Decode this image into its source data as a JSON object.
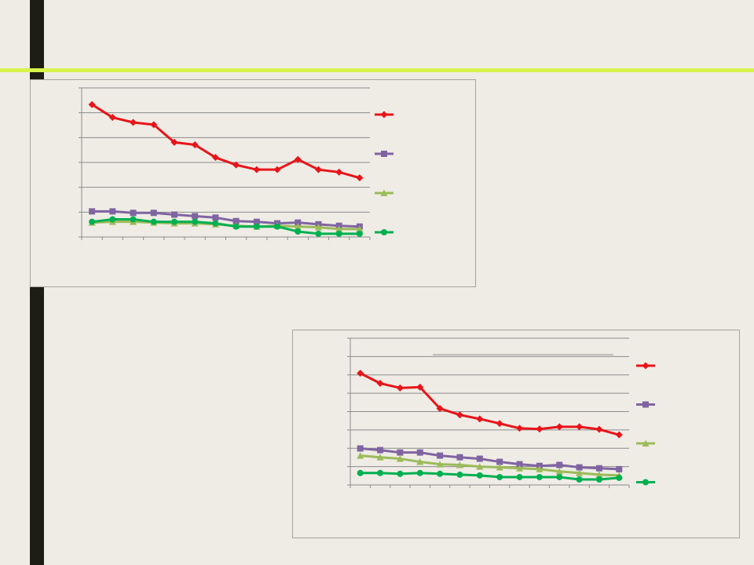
{
  "slide": {
    "sidebar_color": "#1e1d14",
    "accent_line_color": "#d8f34a",
    "background_color": "#efece5"
  },
  "chart_data": [
    {
      "type": "line",
      "title": "",
      "xlabel": "",
      "ylabel": "",
      "grid": true,
      "legend": "right",
      "ylim": [
        0,
        6
      ],
      "x": [
        1,
        2,
        3,
        4,
        5,
        6,
        7,
        8,
        9,
        10,
        11,
        12,
        13,
        14
      ],
      "series": [
        {
          "color": "#e8141a",
          "marker": "diamond",
          "values": [
            5.33,
            4.81,
            4.61,
            4.52,
            3.81,
            3.71,
            3.2,
            2.9,
            2.71,
            2.71,
            3.12,
            2.71,
            2.61,
            2.38
          ]
        },
        {
          "color": "#8064a2",
          "marker": "square",
          "values": [
            1.03,
            1.03,
            0.97,
            0.97,
            0.9,
            0.84,
            0.78,
            0.64,
            0.61,
            0.55,
            0.58,
            0.51,
            0.45,
            0.42
          ]
        },
        {
          "color": "#9bbb59",
          "marker": "triangle",
          "values": [
            0.58,
            0.61,
            0.61,
            0.58,
            0.55,
            0.55,
            0.51,
            0.45,
            0.42,
            0.45,
            0.42,
            0.39,
            0.32,
            0.32
          ]
        },
        {
          "color": "#00b050",
          "marker": "circle",
          "values": [
            0.61,
            0.71,
            0.71,
            0.61,
            0.61,
            0.61,
            0.55,
            0.42,
            0.42,
            0.42,
            0.22,
            0.13,
            0.13,
            0.13
          ]
        }
      ]
    },
    {
      "type": "line",
      "title": "",
      "xlabel": "",
      "ylabel": "",
      "grid": true,
      "legend": "right",
      "ylim": [
        0,
        8
      ],
      "x": [
        1,
        2,
        3,
        4,
        5,
        6,
        7,
        8,
        9,
        10,
        11,
        12,
        13,
        14
      ],
      "series": [
        {
          "color": "#e8141a",
          "marker": "diamond",
          "values": [
            6.09,
            5.54,
            5.29,
            5.33,
            4.17,
            3.82,
            3.6,
            3.35,
            3.09,
            3.05,
            3.17,
            3.17,
            3.03,
            2.73
          ]
        },
        {
          "color": "#8064a2",
          "marker": "square",
          "values": [
            1.99,
            1.9,
            1.77,
            1.77,
            1.6,
            1.51,
            1.43,
            1.26,
            1.13,
            1.04,
            1.09,
            0.96,
            0.91,
            0.86
          ]
        },
        {
          "color": "#9bbb59",
          "marker": "triangle",
          "values": [
            1.6,
            1.51,
            1.43,
            1.26,
            1.13,
            1.09,
            1.0,
            0.96,
            0.91,
            0.86,
            0.74,
            0.65,
            0.56,
            0.52
          ]
        },
        {
          "color": "#00b050",
          "marker": "circle",
          "values": [
            0.65,
            0.65,
            0.61,
            0.65,
            0.61,
            0.56,
            0.52,
            0.43,
            0.43,
            0.43,
            0.43,
            0.3,
            0.3,
            0.39
          ]
        }
      ]
    }
  ]
}
